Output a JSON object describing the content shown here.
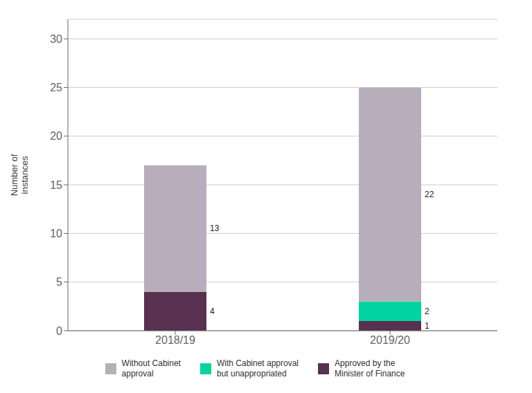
{
  "chart_data": {
    "type": "bar",
    "stacked": true,
    "data_labels": true,
    "grid": true,
    "legend": "bottom",
    "categories": [
      "2018/19",
      "2019/20"
    ],
    "ylabel": "Number of\ninstances",
    "ylim": [
      0,
      32
    ],
    "yticks": [
      0,
      5,
      10,
      15,
      20,
      25,
      30
    ],
    "series": [
      {
        "name": "Without Cabinet\napproval",
        "color": "#b8aebb",
        "values": [
          13,
          22
        ]
      },
      {
        "name": "With Cabinet approval\nbut unappropriated",
        "color": "#00d4a0",
        "values": [
          0,
          2
        ]
      },
      {
        "name": "Approved by the\nMinister of Finance",
        "color": "#583050",
        "values": [
          4,
          1
        ]
      }
    ]
  }
}
